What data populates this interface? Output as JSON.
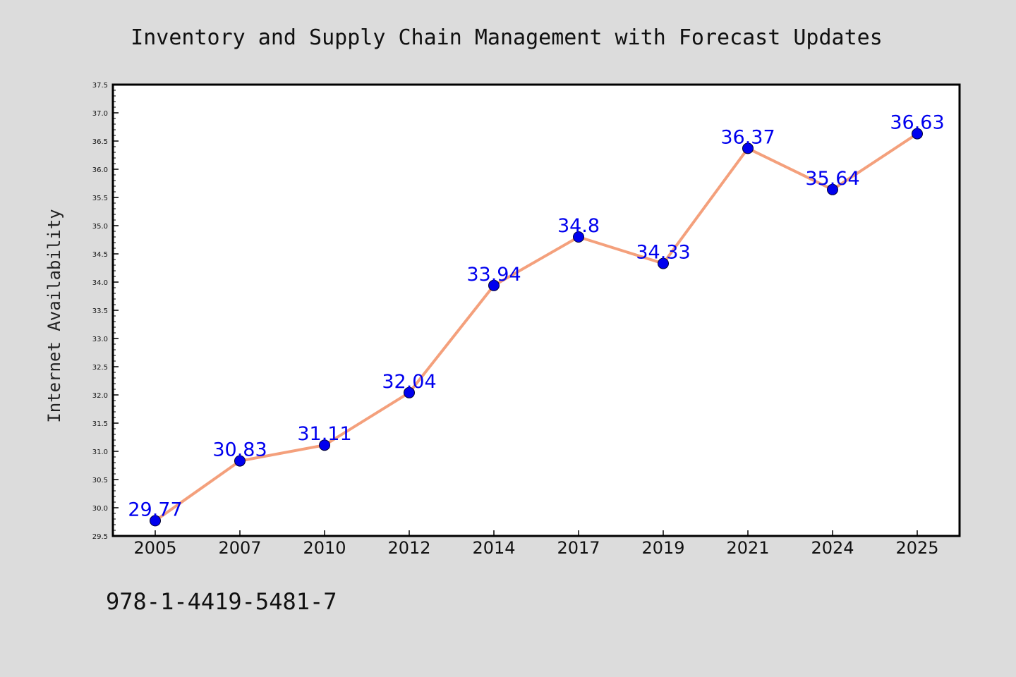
{
  "chart_data": {
    "type": "line",
    "title": "Inventory and Supply Chain Management with Forecast Updates",
    "xlabel": "",
    "ylabel": "Internet Availability",
    "categories": [
      "2005",
      "2007",
      "2010",
      "2012",
      "2014",
      "2017",
      "2019",
      "2021",
      "2024",
      "2025"
    ],
    "series": [
      {
        "values": [
          29.77,
          30.83,
          31.11,
          32.04,
          33.94,
          34.8,
          34.33,
          36.37,
          35.64,
          36.63
        ]
      }
    ],
    "data_labels": [
      "29.77",
      "30.83",
      "31.11",
      "32.04",
      "33.94",
      "34.8",
      "34.33",
      "36.37",
      "35.64",
      "36.63"
    ],
    "ylim": [
      29.5,
      37.5
    ],
    "yticks": [
      "29.5",
      "30.0",
      "30.5",
      "31.0",
      "31.5",
      "32.0",
      "32.5",
      "33.0",
      "33.5",
      "34.0",
      "34.5",
      "35.0",
      "35.5",
      "36.0",
      "36.5",
      "37.0",
      "37.5"
    ],
    "grid": false,
    "legend": "none",
    "colors": {
      "line": "#f4a07c",
      "marker": "#0000ee",
      "label": "#0000ee",
      "background": "#dcdcdc",
      "plot_background": "#ffffff"
    }
  },
  "footer": {
    "isbn": "978-1-4419-5481-7"
  }
}
